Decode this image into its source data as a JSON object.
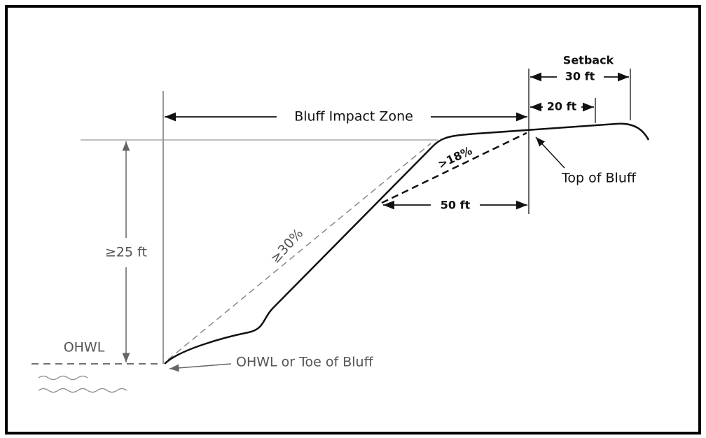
{
  "labels": {
    "setback": "Setback",
    "setback_distance": "30 ft",
    "inner_distance": "20 ft",
    "impact_zone": "Bluff Impact Zone",
    "upper_slope": ">18%",
    "top_of_bluff": "Top of Bluff",
    "horizontal_distance": "50 ft",
    "lower_slope": "≥30%",
    "height": "≥25 ft",
    "ohwl": "OHWL",
    "toe": "OHWL or Toe of Bluff"
  }
}
